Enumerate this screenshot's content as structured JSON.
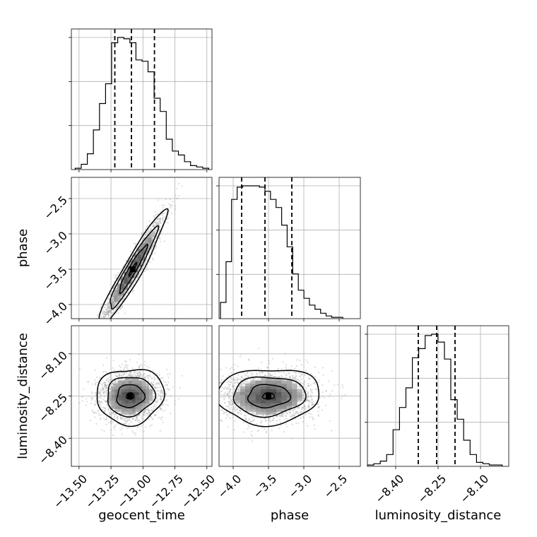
{
  "chart_data": {
    "type": "corner",
    "parameters": [
      {
        "name": "geocent_time",
        "label": "geocent_time",
        "range": [
          -13.56,
          -12.46
        ],
        "ticks": [
          -13.5,
          -13.25,
          -13.0,
          -12.75,
          -12.5
        ],
        "tick_labels": [
          "−13.50",
          "−13.25",
          "−13.00",
          "−12.75",
          "−12.50"
        ],
        "quantiles": [
          -13.22,
          -13.09,
          -12.91
        ],
        "hist_edges_start": -13.53,
        "hist_bin_width": 0.0475,
        "hist_counts": [
          1,
          4,
          12,
          30,
          50,
          65,
          96,
          100,
          99,
          96,
          83,
          82,
          74,
          54,
          44,
          23,
          14,
          11,
          6,
          3,
          2,
          1
        ]
      },
      {
        "name": "phase",
        "label": "phase",
        "range": [
          -4.2,
          -2.2
        ],
        "ticks": [
          -4.0,
          -3.5,
          -3.0,
          -2.5
        ],
        "tick_labels": [
          "−4.0",
          "−3.5",
          "−3.0",
          "−2.5"
        ],
        "quantiles": [
          -3.88,
          -3.55,
          -3.17
        ],
        "hist_edges_start": -4.18,
        "hist_bin_width": 0.0787,
        "hist_counts": [
          12,
          42,
          88,
          97,
          98,
          98,
          98,
          97,
          94,
          88,
          82,
          69,
          53,
          33,
          21,
          15,
          10,
          7,
          4,
          2,
          1,
          1
        ]
      },
      {
        "name": "luminosity_distance",
        "label": "luminosity_distance",
        "range": [
          -8.5,
          -8.0
        ],
        "ticks": [
          -8.4,
          -8.25,
          -8.1
        ],
        "tick_labels": [
          "−8.40",
          "−8.25",
          "−8.10"
        ],
        "quantiles": [
          -8.32,
          -8.255,
          -8.19
        ],
        "hist_edges_start": -8.5,
        "hist_bin_width": 0.0227,
        "hist_counts": [
          1,
          2,
          4,
          9,
          28,
          45,
          60,
          83,
          90,
          100,
          101,
          95,
          82,
          51,
          36,
          20,
          9,
          3,
          2,
          1,
          1
        ]
      }
    ],
    "pairs": [
      {
        "x": "geocent_time",
        "y": "phase",
        "correlation": 0.95,
        "mean": [
          -13.08,
          -3.5
        ],
        "sd": [
          0.12,
          0.37
        ]
      },
      {
        "x": "geocent_time",
        "y": "luminosity_distance",
        "correlation": 0.05,
        "mean": [
          -13.1,
          -8.25
        ],
        "sd": [
          0.12,
          0.045
        ]
      },
      {
        "x": "phase",
        "y": "luminosity_distance",
        "correlation": 0.05,
        "mean": [
          -3.5,
          -8.25
        ],
        "sd": [
          0.33,
          0.045
        ]
      }
    ],
    "contour_levels": [
      "39.3%",
      "86.5%",
      "98.9%"
    ],
    "grid": true,
    "colors": {
      "line": "#000000",
      "grid": "#b0b0b0",
      "scatter": "#9a9a9a"
    }
  }
}
